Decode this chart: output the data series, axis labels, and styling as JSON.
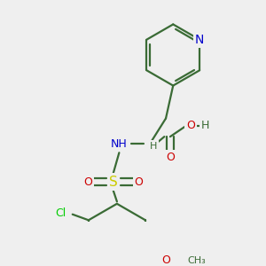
{
  "bg_color": "#efefef",
  "bond_color": "#3a6b35",
  "bond_lw": 1.6,
  "colors": {
    "N": "#0000cc",
    "O": "#cc0000",
    "S": "#cccc00",
    "Cl": "#00cc00",
    "C": "#3a6b35",
    "H": "#3a6b35"
  },
  "fs": 9,
  "fss": 8
}
